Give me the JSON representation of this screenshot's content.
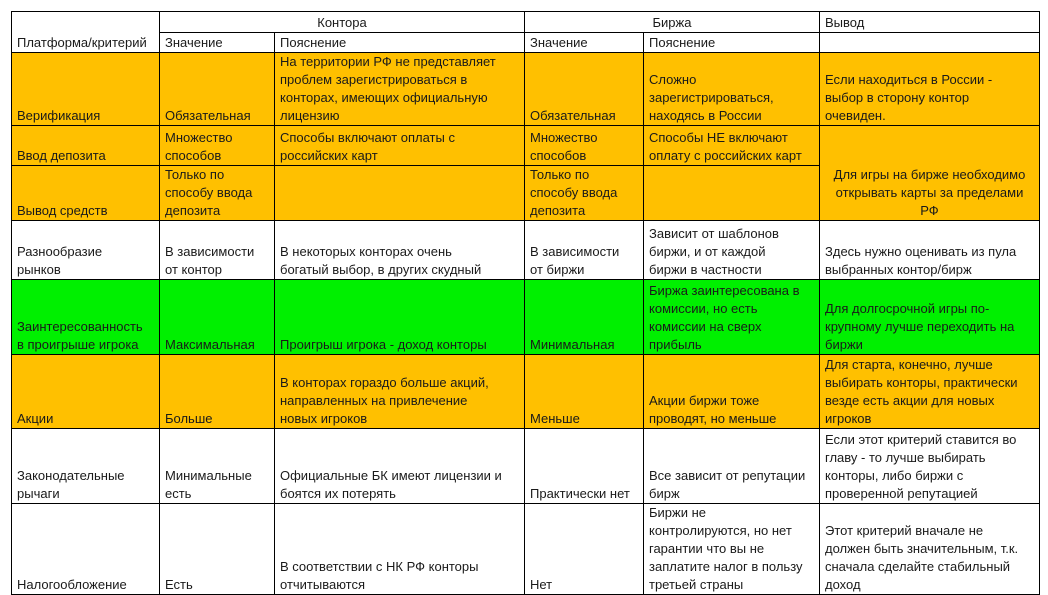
{
  "colors": {
    "orange": "#FFC000",
    "green": "#00F000",
    "white": "#FFFFFF"
  },
  "header": {
    "criterion": "Платформа/критерий",
    "group_kontora": "Контора",
    "group_birzha": "Биржа",
    "group_vyvod": "Вывод",
    "value": "Значение",
    "explanation": "Пояснение"
  },
  "rows": [
    {
      "criterion": "Верификация",
      "color": "orange",
      "k_value": "Обязательная",
      "k_expl": "На территории РФ не представляет\nпроблем зарегистрироваться в\nконторах, имеющих официальную\nлицензию",
      "b_value": "Обязательная",
      "b_expl": "Сложно\nзарегистрироваться,\nнаходясь в России",
      "conclusion": "Если находиться в России -\nвыбор в сторону контор\nочевиден."
    },
    {
      "criterion": "Ввод депозита",
      "color": "orange",
      "k_value": "Множество\nспособов",
      "k_expl": "Способы включают оплаты с\nроссийских карт",
      "b_value": "Множество\nспособов",
      "b_expl": "Способы НЕ включают\nоплату с российских карт",
      "conclusion": "Для игры на бирже необходимо\nоткрывать карты за пределами\nРФ"
    },
    {
      "criterion": "Вывод средств",
      "color": "orange",
      "k_value": "Только по\nспособу ввода\nдепозита",
      "k_expl": "",
      "b_value": "Только по\nспособу ввода\nдепозита",
      "b_expl": ""
    },
    {
      "criterion": "Разнообразие\nрынков",
      "color": "white",
      "k_value": "В зависимости\nот контор",
      "k_expl": "В некоторых конторах очень\nбогатый выбор, в других скудный",
      "b_value": "В зависимости\nот биржи",
      "b_expl": "Зависит от шаблонов\nбиржи, и от каждой\nбиржи в частности",
      "conclusion": "Здесь нужно оценивать из пула\nвыбранных контор/бирж"
    },
    {
      "criterion": "Заинтересованность\nв проигрыше игрока",
      "color": "green",
      "k_value": "Максимальная",
      "k_expl": "Проигрыш игрока - доход конторы",
      "b_value": "Минимальная",
      "b_expl": "Биржа заинтересована в\nкомиссии, но есть\nкомиссии на сверх\nприбыль",
      "conclusion": "Для долгосрочной игры по-\nкрупному лучше переходить на\nбиржи"
    },
    {
      "criterion": "Акции",
      "color": "orange",
      "k_value": "Больше",
      "k_expl": "В конторах гораздо больше акций,\nнаправленных на привлечение\nновых игроков",
      "b_value": "Меньше",
      "b_expl": "Акции биржи тоже\nпроводят, но меньше",
      "conclusion": "Для старта, конечно, лучше\nвыбирать конторы, практически\nвезде есть акции для новых\nигроков"
    },
    {
      "criterion": "Законодательные\nрычаги",
      "color": "white",
      "k_value": "Минимальные\nесть",
      "k_expl": "Официальные БК имеют лицензии и\nбоятся их потерять",
      "b_value": "Практически нет",
      "b_expl": "Все зависит от репутации\nбирж",
      "conclusion": "Если этот критерий ставится во\nглаву - то лучше выбирать\nконторы, либо биржи с\nпроверенной репутацией"
    },
    {
      "criterion": "Налогообложение",
      "color": "white",
      "k_value": "Есть",
      "k_expl": "В соответствии с НК РФ конторы\nотчитываются",
      "b_value": "Нет",
      "b_expl": "Биржи не\nконтролируются, но нет\nгарантии что вы не\nзаплатите налог в пользу\nтретьей страны",
      "conclusion": "Этот критерий вначале не\nдолжен быть значительным, т.к.\nсначала сделайте стабильный\nдоход"
    }
  ]
}
